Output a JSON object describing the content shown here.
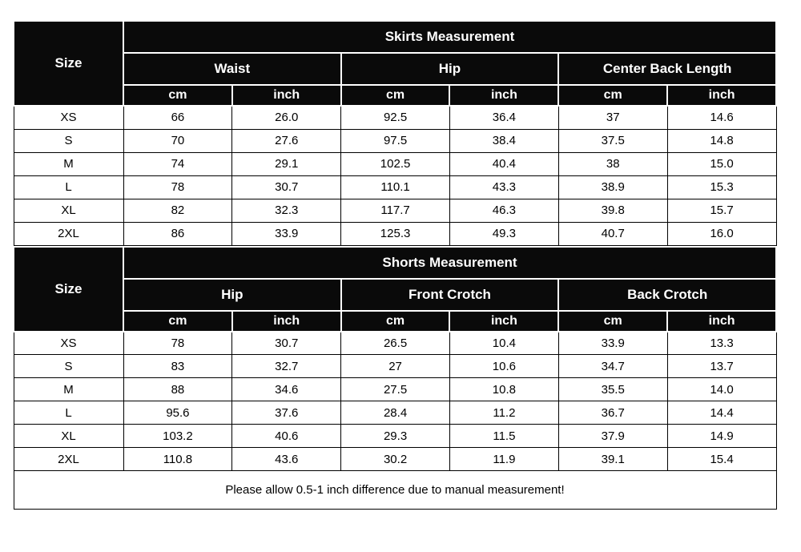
{
  "colors": {
    "header_bg": "#0a0a0a",
    "header_text": "#ffffff",
    "header_border": "#ffffff",
    "cell_bg": "#ffffff",
    "cell_text": "#000000",
    "cell_border": "#000000",
    "page_bg": "#ffffff"
  },
  "chart_data": [
    {
      "type": "table",
      "title": "Skirts Measurement",
      "corner_label": "Size",
      "column_groups": [
        "Waist",
        "Hip",
        "Center Back Length"
      ],
      "unit_row": [
        "cm",
        "inch",
        "cm",
        "inch",
        "cm",
        "inch"
      ],
      "row_labels": [
        "XS",
        "S",
        "M",
        "L",
        "XL",
        "2XL"
      ],
      "rows": [
        {
          "size": "XS",
          "values": [
            "66",
            "26.0",
            "92.5",
            "36.4",
            "37",
            "14.6"
          ]
        },
        {
          "size": "S",
          "values": [
            "70",
            "27.6",
            "97.5",
            "38.4",
            "37.5",
            "14.8"
          ]
        },
        {
          "size": "M",
          "values": [
            "74",
            "29.1",
            "102.5",
            "40.4",
            "38",
            "15.0"
          ]
        },
        {
          "size": "L",
          "values": [
            "78",
            "30.7",
            "110.1",
            "43.3",
            "38.9",
            "15.3"
          ]
        },
        {
          "size": "XL",
          "values": [
            "82",
            "32.3",
            "117.7",
            "46.3",
            "39.8",
            "15.7"
          ]
        },
        {
          "size": "2XL",
          "values": [
            "86",
            "33.9",
            "125.3",
            "49.3",
            "40.7",
            "16.0"
          ]
        }
      ]
    },
    {
      "type": "table",
      "title": "Shorts Measurement",
      "corner_label": "Size",
      "column_groups": [
        "Hip",
        "Front Crotch",
        "Back Crotch"
      ],
      "unit_row": [
        "cm",
        "inch",
        "cm",
        "inch",
        "cm",
        "inch"
      ],
      "row_labels": [
        "XS",
        "S",
        "M",
        "L",
        "XL",
        "2XL"
      ],
      "rows": [
        {
          "size": "XS",
          "values": [
            "78",
            "30.7",
            "26.5",
            "10.4",
            "33.9",
            "13.3"
          ]
        },
        {
          "size": "S",
          "values": [
            "83",
            "32.7",
            "27",
            "10.6",
            "34.7",
            "13.7"
          ]
        },
        {
          "size": "M",
          "values": [
            "88",
            "34.6",
            "27.5",
            "10.8",
            "35.5",
            "14.0"
          ]
        },
        {
          "size": "L",
          "values": [
            "95.6",
            "37.6",
            "28.4",
            "11.2",
            "36.7",
            "14.4"
          ]
        },
        {
          "size": "XL",
          "values": [
            "103.2",
            "40.6",
            "29.3",
            "11.5",
            "37.9",
            "14.9"
          ]
        },
        {
          "size": "2XL",
          "values": [
            "110.8",
            "43.6",
            "30.2",
            "11.9",
            "39.1",
            "15.4"
          ]
        }
      ]
    }
  ],
  "footer": {
    "note": "Please allow 0.5-1 inch difference due to manual measurement!"
  }
}
